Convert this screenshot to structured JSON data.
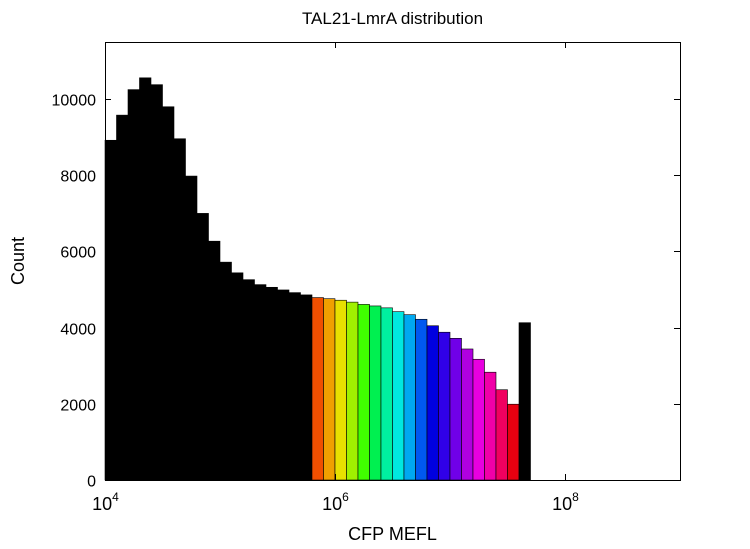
{
  "chart_data": {
    "type": "bar",
    "title": "TAL21-LmrA distribution",
    "xlabel": "CFP MEFL",
    "ylabel": "Count",
    "x_scale": "log",
    "xlim": [
      10000,
      1000000000
    ],
    "ylim": [
      0,
      11500
    ],
    "x_ticks": [
      {
        "value": 10000,
        "base": "10",
        "exp": "4"
      },
      {
        "value": 1000000,
        "base": "10",
        "exp": "6"
      },
      {
        "value": 100000000,
        "base": "10",
        "exp": "8"
      }
    ],
    "y_ticks": [
      0,
      2000,
      4000,
      6000,
      8000,
      10000
    ],
    "grid": false,
    "bin_log_width": 0.1,
    "bins": [
      {
        "x": 10000,
        "count": 8920,
        "color": "#000000"
      },
      {
        "x": 12590,
        "count": 9580,
        "color": "#000000"
      },
      {
        "x": 15850,
        "count": 10250,
        "color": "#000000"
      },
      {
        "x": 19950,
        "count": 10560,
        "color": "#000000"
      },
      {
        "x": 25120,
        "count": 10380,
        "color": "#000000"
      },
      {
        "x": 31620,
        "count": 9800,
        "color": "#000000"
      },
      {
        "x": 39810,
        "count": 8960,
        "color": "#000000"
      },
      {
        "x": 50120,
        "count": 7980,
        "color": "#000000"
      },
      {
        "x": 63100,
        "count": 7000,
        "color": "#000000"
      },
      {
        "x": 79430,
        "count": 6270,
        "color": "#000000"
      },
      {
        "x": 100000,
        "count": 5720,
        "color": "#000000"
      },
      {
        "x": 125900,
        "count": 5440,
        "color": "#000000"
      },
      {
        "x": 158500,
        "count": 5260,
        "color": "#000000"
      },
      {
        "x": 199500,
        "count": 5130,
        "color": "#000000"
      },
      {
        "x": 251200,
        "count": 5060,
        "color": "#000000"
      },
      {
        "x": 316200,
        "count": 4990,
        "color": "#000000"
      },
      {
        "x": 398100,
        "count": 4920,
        "color": "#000000"
      },
      {
        "x": 501200,
        "count": 4860,
        "color": "#000000"
      },
      {
        "x": 631000,
        "count": 4790,
        "color": "#f04f00"
      },
      {
        "x": 794300,
        "count": 4760,
        "color": "#f0a000"
      },
      {
        "x": 1000000,
        "count": 4720,
        "color": "#e8e000"
      },
      {
        "x": 1259000,
        "count": 4670,
        "color": "#a0f000"
      },
      {
        "x": 1585000,
        "count": 4610,
        "color": "#40ff00"
      },
      {
        "x": 1995000,
        "count": 4570,
        "color": "#00f050"
      },
      {
        "x": 2512000,
        "count": 4520,
        "color": "#00f0a0"
      },
      {
        "x": 3162000,
        "count": 4420,
        "color": "#00e8e0"
      },
      {
        "x": 3981000,
        "count": 4340,
        "color": "#00a8f0"
      },
      {
        "x": 5012000,
        "count": 4220,
        "color": "#0058f0"
      },
      {
        "x": 6310000,
        "count": 4050,
        "color": "#0000e0"
      },
      {
        "x": 7943000,
        "count": 3880,
        "color": "#3000e8"
      },
      {
        "x": 10000000,
        "count": 3720,
        "color": "#7000e8"
      },
      {
        "x": 12590000,
        "count": 3440,
        "color": "#b000e0"
      },
      {
        "x": 15850000,
        "count": 3170,
        "color": "#e800e0"
      },
      {
        "x": 19950000,
        "count": 2830,
        "color": "#f000a8"
      },
      {
        "x": 25120000,
        "count": 2370,
        "color": "#f00060"
      },
      {
        "x": 31620000,
        "count": 1990,
        "color": "#e80010"
      },
      {
        "x": 39810000,
        "count": 4130,
        "color": "#000000"
      }
    ]
  }
}
